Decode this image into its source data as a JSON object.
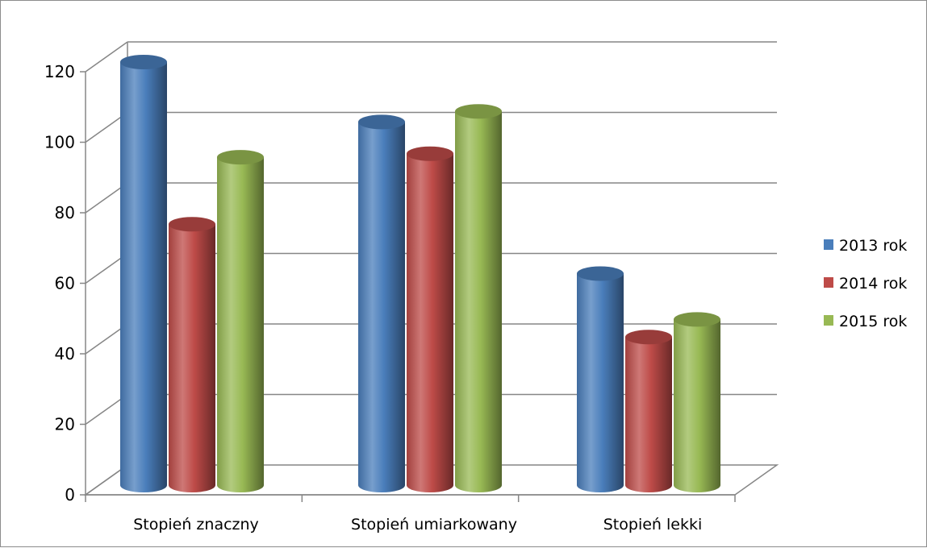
{
  "chart_data": {
    "type": "bar",
    "style": "3d-cylinder",
    "categories": [
      "Stopień znaczny",
      "Stopień umiarkowany",
      "Stopień lekki"
    ],
    "series": [
      {
        "name": "2013 rok",
        "color": "#4a7ebb",
        "values": [
          120,
          103,
          60
        ]
      },
      {
        "name": "2014 rok",
        "color": "#be4b48",
        "values": [
          74,
          94,
          42
        ]
      },
      {
        "name": "2015 rok",
        "color": "#98b954",
        "values": [
          93,
          106,
          47
        ]
      }
    ],
    "ylim": [
      0,
      120
    ],
    "yticks": [
      "0",
      "20",
      "40",
      "60",
      "80",
      "100",
      "120"
    ],
    "grid": true,
    "legend_position": "right",
    "title": "",
    "xlabel": "",
    "ylabel": ""
  }
}
